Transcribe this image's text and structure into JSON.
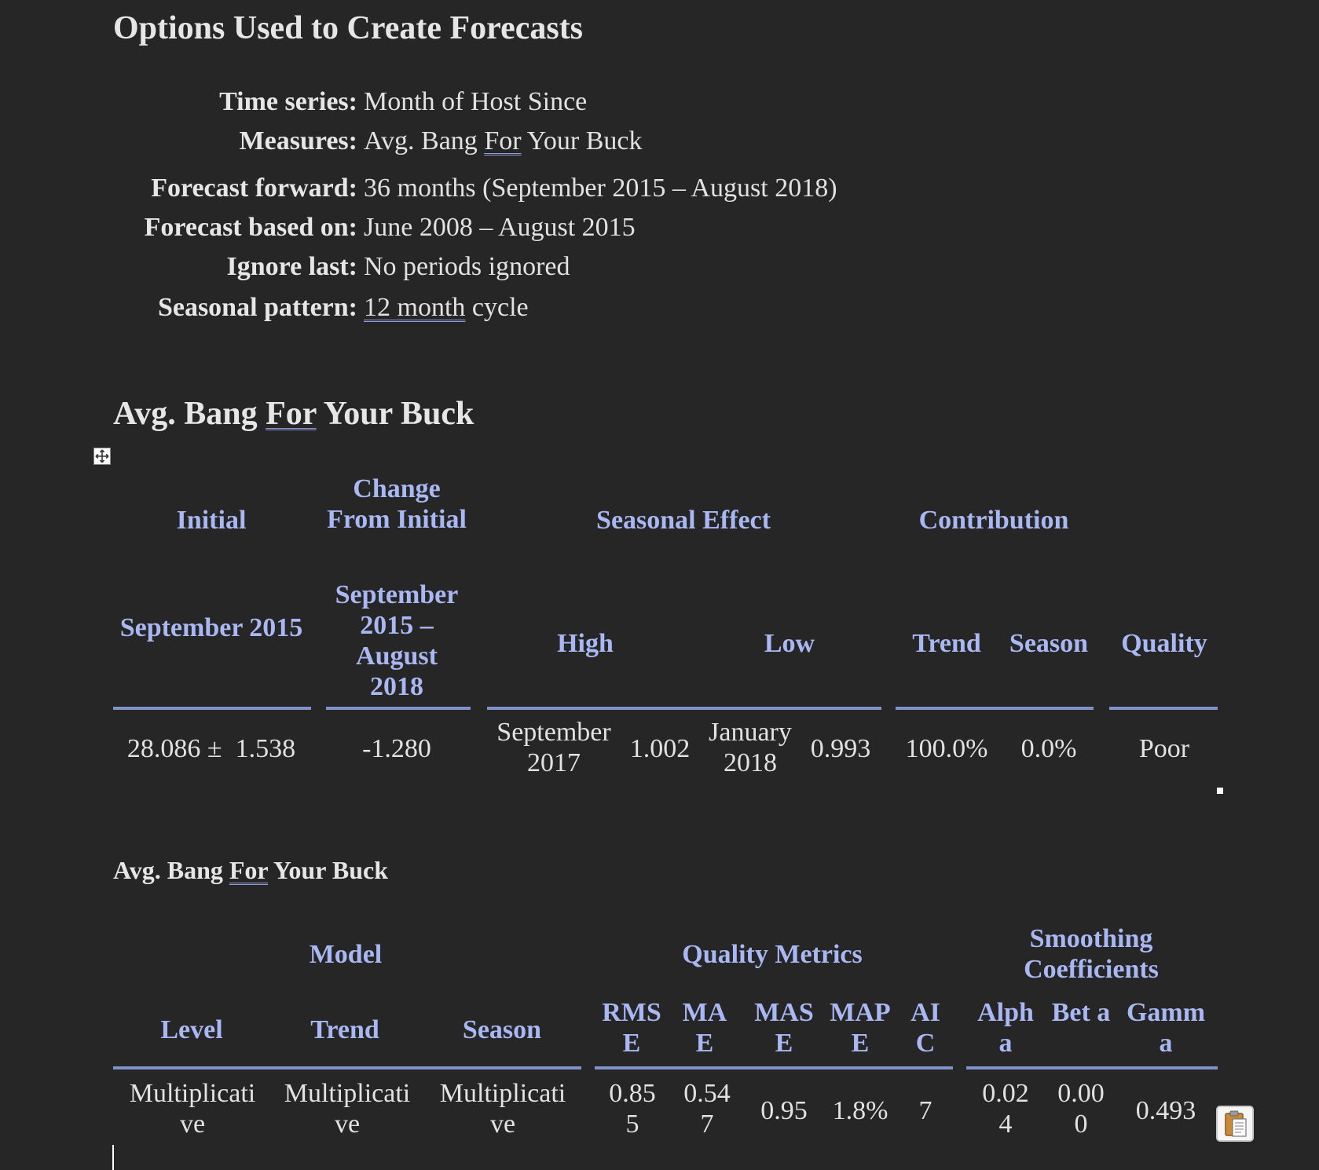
{
  "options": {
    "heading": "Options Used to Create Forecasts",
    "rows": [
      {
        "label": "Time series:",
        "value": "Month of Host Since"
      },
      {
        "label": "Measures:",
        "value_parts": [
          "Avg. Bang ",
          "For",
          " Your Buck"
        ]
      },
      {
        "label": "Forecast forward:",
        "value": "36 months (September 2015 – August 2018)"
      },
      {
        "label": "Forecast based on:",
        "value": "June 2008 – August 2015"
      },
      {
        "label": "Ignore last:",
        "value": "No periods ignored"
      },
      {
        "label": "Seasonal pattern:",
        "value_parts": [
          "12 month",
          " cycle"
        ]
      }
    ]
  },
  "summary": {
    "heading_parts": [
      "Avg. Bang ",
      "For",
      " Your Buck"
    ],
    "headers": {
      "initial": "Initial",
      "change": "Change From Initial",
      "seasonal_effect": "Seasonal Effect",
      "contribution": "Contribution",
      "initial_sub": "September 2015",
      "change_sub": "September 2015 – August 2018",
      "high": "High",
      "low": "Low",
      "trend": "Trend",
      "season": "Season",
      "quality": "Quality"
    },
    "row": {
      "initial": "28.086 ±  1.538",
      "change": "-1.280",
      "high_period": "September 2017",
      "high_value": "1.002",
      "low_period": "January 2018",
      "low_value": "0.993",
      "trend": "100.0%",
      "season": "0.0%",
      "quality": "Poor"
    }
  },
  "model": {
    "heading_parts": [
      "Avg. Bang ",
      "For",
      " Your Buck"
    ],
    "headers": {
      "model": "Model",
      "quality_metrics": "Quality Metrics",
      "smoothing": "Smoothing Coefficients",
      "level": "Level",
      "trend": "Trend",
      "season": "Season",
      "rmse": "RMS E",
      "mae": "MA E",
      "mase": "MAS E",
      "mape": "MAP E",
      "aic": "AI C",
      "alpha": "Alph a",
      "beta": "Bet a",
      "gamma": "Gamm a"
    },
    "row": {
      "level": "Multiplicati ve",
      "trend": "Multiplicati ve",
      "season": "Multiplicati ve",
      "rmse": "0.85 5",
      "mae": "0.54 7",
      "mase": "0.95",
      "mape": "1.8%",
      "aic": "7",
      "alpha": "0.02 4",
      "beta": "0.00 0",
      "gamma": "0.493"
    }
  },
  "colors": {
    "background": "#262626",
    "header_text": "#a9b7f2",
    "rule": "#8093c9",
    "body_text": "#e2e2e2"
  },
  "icons": [
    "move-handle-icon",
    "paste-icon"
  ]
}
